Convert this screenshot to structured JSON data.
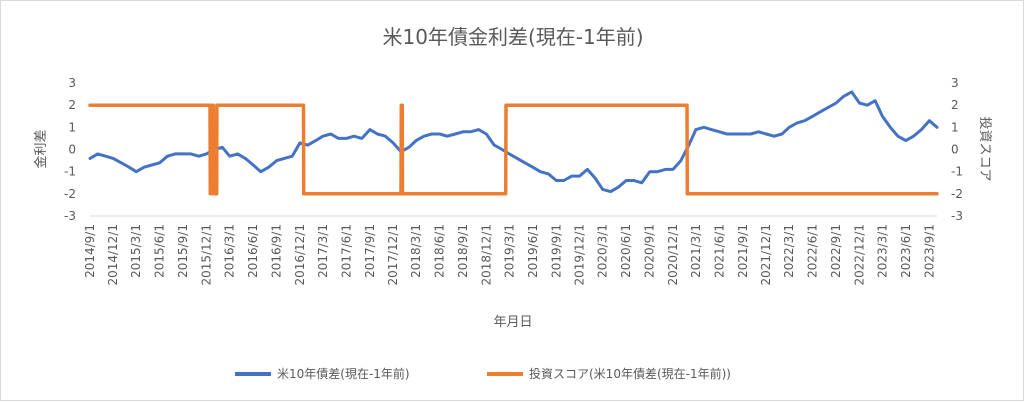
{
  "chart_data": {
    "type": "line",
    "title": "米10年債金利差(現在-1年前)",
    "xlabel": "年月日",
    "ylabel_left": "金利差",
    "ylabel_right": "投資スコア",
    "ylim_left": [
      -3,
      3
    ],
    "ylim_right": [
      -3,
      3
    ],
    "yticks": [
      "-3",
      "-2",
      "-1",
      "0",
      "1",
      "2",
      "3"
    ],
    "grid": false,
    "legend_position": "bottom",
    "x_tick_labels": [
      "2014/9/1",
      "2014/12/1",
      "2015/3/1",
      "2015/6/1",
      "2015/9/1",
      "2015/12/1",
      "2016/3/1",
      "2016/6/1",
      "2016/9/1",
      "2016/12/1",
      "2017/3/1",
      "2017/6/1",
      "2017/9/1",
      "2017/12/1",
      "2018/3/1",
      "2018/6/1",
      "2018/9/1",
      "2018/12/1",
      "2019/3/1",
      "2019/6/1",
      "2019/9/1",
      "2019/12/1",
      "2020/3/1",
      "2020/6/1",
      "2020/9/1",
      "2020/12/1",
      "2021/3/1",
      "2021/6/1",
      "2021/9/1",
      "2021/12/1",
      "2022/3/1",
      "2022/6/1",
      "2022/9/1",
      "2022/12/1",
      "2023/3/1",
      "2023/6/1",
      "2023/9/1"
    ],
    "series": [
      {
        "name": "米10年債差(現在-1年前)",
        "color": "#4472c4",
        "axis": "left",
        "x": [
          "2014/9/1",
          "2014/10/1",
          "2014/11/1",
          "2014/12/1",
          "2015/1/1",
          "2015/2/1",
          "2015/3/1",
          "2015/4/1",
          "2015/5/1",
          "2015/6/1",
          "2015/7/1",
          "2015/8/1",
          "2015/9/1",
          "2015/10/1",
          "2015/11/1",
          "2015/12/1",
          "2016/1/1",
          "2016/2/1",
          "2016/3/1",
          "2016/4/1",
          "2016/5/1",
          "2016/6/1",
          "2016/7/1",
          "2016/8/1",
          "2016/9/1",
          "2016/10/1",
          "2016/11/1",
          "2016/12/1",
          "2017/1/1",
          "2017/2/1",
          "2017/3/1",
          "2017/4/1",
          "2017/5/1",
          "2017/6/1",
          "2017/7/1",
          "2017/8/1",
          "2017/9/1",
          "2017/10/1",
          "2017/11/1",
          "2017/12/1",
          "2018/1/1",
          "2018/2/1",
          "2018/3/1",
          "2018/4/1",
          "2018/5/1",
          "2018/6/1",
          "2018/7/1",
          "2018/8/1",
          "2018/9/1",
          "2018/10/1",
          "2018/11/1",
          "2018/12/1",
          "2019/1/1",
          "2019/2/1",
          "2019/3/1",
          "2019/4/1",
          "2019/5/1",
          "2019/6/1",
          "2019/7/1",
          "2019/8/1",
          "2019/9/1",
          "2019/10/1",
          "2019/11/1",
          "2019/12/1",
          "2020/1/1",
          "2020/2/1",
          "2020/3/1",
          "2020/4/1",
          "2020/5/1",
          "2020/6/1",
          "2020/7/1",
          "2020/8/1",
          "2020/9/1",
          "2020/10/1",
          "2020/11/1",
          "2020/12/1",
          "2021/1/1",
          "2021/2/1",
          "2021/3/1",
          "2021/4/1",
          "2021/5/1",
          "2021/6/1",
          "2021/7/1",
          "2021/8/1",
          "2021/9/1",
          "2021/10/1",
          "2021/11/1",
          "2021/12/1",
          "2022/1/1",
          "2022/2/1",
          "2022/3/1",
          "2022/4/1",
          "2022/5/1",
          "2022/6/1",
          "2022/7/1",
          "2022/8/1",
          "2022/9/1",
          "2022/10/1",
          "2022/11/1",
          "2022/12/1",
          "2023/1/1",
          "2023/2/1",
          "2023/3/1",
          "2023/4/1",
          "2023/5/1",
          "2023/6/1",
          "2023/7/1",
          "2023/8/1",
          "2023/9/1",
          "2023/10/1"
        ],
        "values": [
          -0.4,
          -0.2,
          -0.3,
          -0.4,
          -0.6,
          -0.8,
          -1.0,
          -0.8,
          -0.7,
          -0.6,
          -0.3,
          -0.2,
          -0.2,
          -0.2,
          -0.3,
          -0.2,
          0.0,
          0.1,
          -0.3,
          -0.2,
          -0.4,
          -0.7,
          -1.0,
          -0.8,
          -0.5,
          -0.4,
          -0.3,
          0.3,
          0.2,
          0.4,
          0.6,
          0.7,
          0.5,
          0.5,
          0.6,
          0.5,
          0.9,
          0.7,
          0.6,
          0.3,
          -0.1,
          0.1,
          0.4,
          0.6,
          0.7,
          0.7,
          0.6,
          0.7,
          0.8,
          0.8,
          0.9,
          0.7,
          0.2,
          0.0,
          -0.2,
          -0.4,
          -0.6,
          -0.8,
          -1.0,
          -1.1,
          -1.4,
          -1.4,
          -1.2,
          -1.2,
          -0.9,
          -1.3,
          -1.8,
          -1.9,
          -1.7,
          -1.4,
          -1.4,
          -1.5,
          -1.0,
          -1.0,
          -0.9,
          -0.9,
          -0.5,
          0.2,
          0.9,
          1.0,
          0.9,
          0.8,
          0.7,
          0.7,
          0.7,
          0.7,
          0.8,
          0.7,
          0.6,
          0.7,
          1.0,
          1.2,
          1.3,
          1.5,
          1.7,
          1.9,
          2.1,
          2.4,
          2.6,
          2.1,
          2.0,
          2.2,
          1.5,
          1.0,
          0.6,
          0.4,
          0.6,
          0.9,
          1.3,
          1.0
        ]
      },
      {
        "name": "投資スコア(米10年債差(現在-1年前))",
        "color": "#ed7d31",
        "axis": "right",
        "x": [
          "2014/9/1",
          "2015/12/15",
          "2015/12/16",
          "2015/12/20",
          "2015/12/21",
          "2015/12/28",
          "2015/12/29",
          "2016/1/10",
          "2016/1/11",
          "2016/2/10",
          "2016/2/11",
          "2016/12/15",
          "2016/12/16",
          "2018/1/1",
          "2018/1/2",
          "2018/1/6",
          "2018/1/7",
          "2018/1/15",
          "2018/1/16",
          "2019/2/15",
          "2019/2/16",
          "2021/1/25",
          "2021/1/26",
          "2023/10/1"
        ],
        "values": [
          2,
          2,
          -2,
          -2,
          2,
          2,
          -2,
          -2,
          2,
          2,
          2,
          2,
          -2,
          -2,
          2,
          2,
          -2,
          -2,
          -2,
          -2,
          2,
          2,
          -2,
          -2
        ]
      }
    ]
  }
}
